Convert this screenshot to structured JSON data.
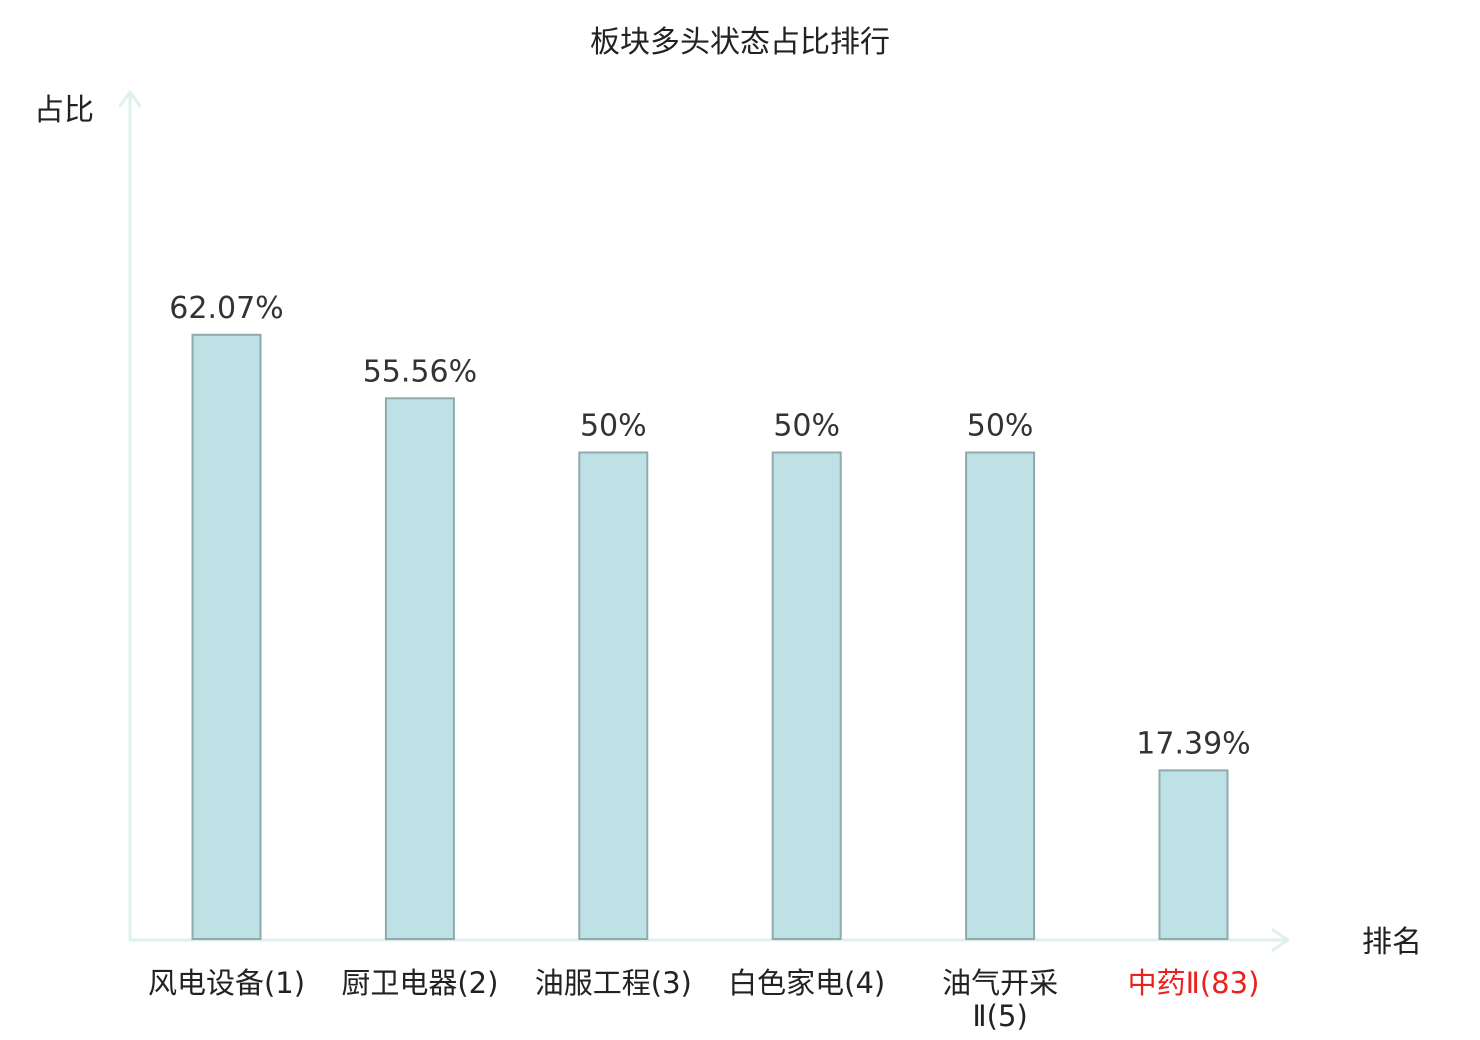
{
  "chart_data": {
    "type": "bar",
    "title": "板块多头状态占比排行",
    "xlabel": "排名",
    "ylabel": "占比",
    "ylim": [
      0,
      70
    ],
    "grid": false,
    "categories": [
      [
        "风电设备(1)"
      ],
      [
        "厨卫电器(2)"
      ],
      [
        "油服工程(3)"
      ],
      [
        "白色家电(4)"
      ],
      [
        "油气开采",
        "Ⅱ(5)"
      ],
      [
        "中药Ⅱ(83)"
      ]
    ],
    "values": [
      62.07,
      55.56,
      50,
      50,
      50,
      17.39
    ],
    "value_labels": [
      "62.07%",
      "55.56%",
      "50%",
      "50%",
      "50%",
      "17.39%"
    ],
    "highlight_index": 5,
    "colors": {
      "bar_fill": "#bde1e4",
      "bar_stroke": "#8faaac",
      "axis": "#dff1ee",
      "highlight_text": "#e8231f"
    }
  }
}
